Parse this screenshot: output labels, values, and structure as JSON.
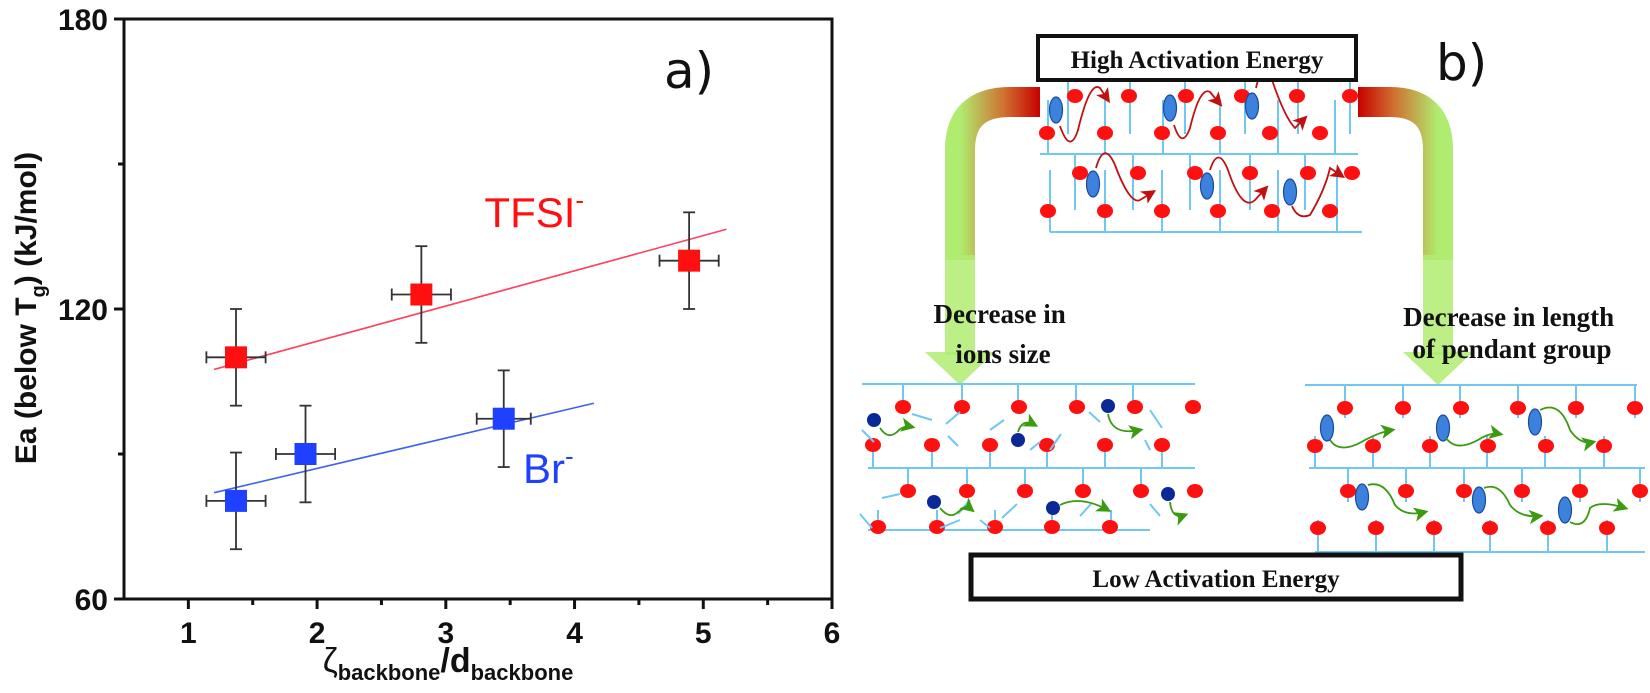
{
  "figure": {
    "panel_a_label": "a)",
    "panel_b_label": "b)"
  },
  "chart_data": {
    "type": "scatter",
    "title": "",
    "xlabel": {
      "main": "ζ",
      "sub1": "backbone",
      "sep": "/d",
      "sub2": "backbone"
    },
    "ylabel": {
      "part1": "Ea (below T",
      "sub": "g",
      "part2": ") (kJ/mol)"
    },
    "xlim": [
      0.5,
      6
    ],
    "ylim": [
      60,
      180
    ],
    "xticks": [
      1,
      2,
      3,
      4,
      5,
      6
    ],
    "xminor": [
      1.5,
      2.5,
      3.5,
      4.5,
      5.5
    ],
    "yticks": [
      60,
      120,
      180
    ],
    "yminor": [
      90,
      150
    ],
    "grid": false,
    "series": [
      {
        "name": "TFSI",
        "label": "TFSI",
        "label_sup": "-",
        "color": "#ff1010",
        "fit_color": "#ff4060",
        "x": [
          1.37,
          2.81,
          4.89
        ],
        "y": [
          110,
          123,
          130
        ],
        "xerr": [
          0.23,
          0.23,
          0.23
        ],
        "yerr": [
          10,
          10,
          10
        ],
        "fit": {
          "x": [
            1.2,
            5.18
          ],
          "y": [
            107.5,
            136.5
          ]
        },
        "label_pos": {
          "x": 3.3,
          "y": 137
        }
      },
      {
        "name": "Br",
        "label": "Br",
        "label_sup": "-",
        "color": "#2040ff",
        "fit_color": "#4060ee",
        "x": [
          1.37,
          1.91,
          3.45
        ],
        "y": [
          80.3,
          90,
          97.3
        ],
        "xerr": [
          0.23,
          0.23,
          0.21
        ],
        "yerr": [
          10,
          10,
          10
        ],
        "fit": {
          "x": [
            1.2,
            4.15
          ],
          "y": [
            82,
            100.5
          ]
        },
        "label_pos": {
          "x": 3.6,
          "y": 84
        }
      }
    ]
  },
  "diagram": {
    "high_energy_label": "High Activation Energy",
    "low_energy_label": "Low Activation Energy",
    "left_branch_label": [
      "Decrease in",
      "ions size"
    ],
    "right_branch_label": [
      "Decrease in length",
      "of pendant group"
    ],
    "colors": {
      "backbone": "#70c8f0",
      "cation": "#ff1010",
      "anion_large": "#3c82dc",
      "anion_small": "#0a2896",
      "path_high": "#c01010",
      "path_low": "#3a9a10",
      "arrow_start": "#c80000",
      "arrow_end": "#b0ec70"
    }
  }
}
